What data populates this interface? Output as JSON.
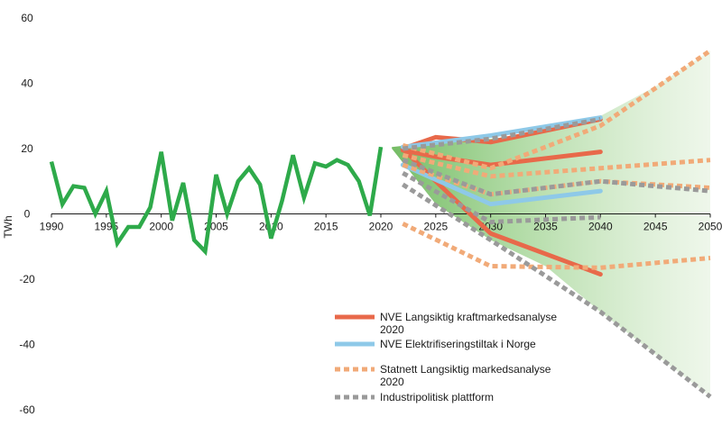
{
  "chart_data": {
    "type": "line",
    "ylabel": "TWh",
    "xlim": [
      1990,
      2050
    ],
    "ylim": [
      -60,
      60
    ],
    "x_ticks": [
      1990,
      1995,
      2000,
      2005,
      2010,
      2015,
      2020,
      2025,
      2030,
      2035,
      2040,
      2045,
      2050
    ],
    "y_ticks": [
      60,
      40,
      20,
      0,
      -20,
      -40,
      -60
    ],
    "grid": false,
    "legend_position": "bottom-right",
    "colors": {
      "historical": "#2eaa4a",
      "nve_market": "#e8694a",
      "nve_electrification": "#8ec9e8",
      "statnett": "#f1aa78",
      "industry": "#9a9a9a",
      "band": "#6ab957"
    },
    "historical": {
      "x": [
        1990,
        1991,
        1992,
        1993,
        1994,
        1995,
        1996,
        1997,
        1998,
        1999,
        2000,
        2001,
        2002,
        2003,
        2004,
        2005,
        2006,
        2007,
        2008,
        2009,
        2010,
        2011,
        2012,
        2013,
        2014,
        2015,
        2016,
        2017,
        2018,
        2019,
        2020
      ],
      "y": [
        16,
        3,
        8.5,
        8,
        0,
        7,
        -9,
        -4,
        -4,
        2,
        19,
        -2,
        9.5,
        -8,
        -11.5,
        12,
        0,
        10,
        14,
        9,
        -7.5,
        4,
        18,
        5,
        15.5,
        14.5,
        16.5,
        15,
        10,
        -0.5,
        20.5
      ]
    },
    "series": [
      {
        "name": "NVE Langsiktig kraftmarkedsanalyse 2020",
        "color": "#e8694a",
        "dash": false,
        "lines": [
          {
            "x": [
              2022,
              2025,
              2030,
              2040
            ],
            "y": [
              20,
              23.5,
              22,
              29
            ]
          },
          {
            "x": [
              2022,
              2025,
              2030,
              2040
            ],
            "y": [
              19.5,
              17.5,
              15,
              19
            ]
          },
          {
            "x": [
              2022,
              2025,
              2030,
              2040
            ],
            "y": [
              20,
              10,
              -6,
              -18.5
            ]
          }
        ]
      },
      {
        "name": "NVE Elektrifiseringstiltak i Norge",
        "color": "#8ec9e8",
        "dash": false,
        "lines": [
          {
            "x": [
              2022,
              2030,
              2040
            ],
            "y": [
              20.5,
              24,
              29.5
            ]
          },
          {
            "x": [
              2022,
              2030,
              2040
            ],
            "y": [
              15,
              3,
              7
            ]
          }
        ]
      },
      {
        "name": "Statnett Langsiktig markedsanalyse 2020",
        "color": "#f1aa78",
        "dash": true,
        "lines": [
          {
            "x": [
              2022,
              2030,
              2040,
              2050
            ],
            "y": [
              21,
              14,
              27,
              50
            ]
          },
          {
            "x": [
              2022,
              2030,
              2040,
              2050
            ],
            "y": [
              18,
              11.5,
              14,
              16.5
            ]
          },
          {
            "x": [
              2022,
              2030,
              2040,
              2050
            ],
            "y": [
              15,
              6,
              10,
              8
            ]
          },
          {
            "x": [
              2022,
              2030,
              2040,
              2050
            ],
            "y": [
              -3,
              -16,
              -16.5,
              -13.5
            ]
          }
        ]
      },
      {
        "name": "Industripolitisk plattform",
        "color": "#9a9a9a",
        "dash": true,
        "lines": [
          {
            "x": [
              2022,
              2030,
              2040
            ],
            "y": [
              20,
              23,
              29
            ]
          },
          {
            "x": [
              2022,
              2030,
              2040,
              2050
            ],
            "y": [
              16.5,
              6,
              10,
              7
            ]
          },
          {
            "x": [
              2022,
              2030,
              2040
            ],
            "y": [
              12.5,
              -2.5,
              -1
            ]
          },
          {
            "x": [
              2022,
              2030,
              2040,
              2050
            ],
            "y": [
              9,
              -8,
              -30,
              -56
            ]
          }
        ]
      }
    ],
    "band": {
      "x": [
        2021,
        2025,
        2030,
        2035,
        2040,
        2045,
        2050
      ],
      "upper": [
        20.5,
        22,
        23,
        25,
        30,
        39,
        50
      ],
      "lower": [
        20,
        3,
        -8,
        -16,
        -30,
        -43,
        -56
      ]
    },
    "legend": [
      {
        "label_1": "NVE Langsiktig kraftmarkedsanalyse",
        "label_2": "2020",
        "style": "solid",
        "color": "#e8694a"
      },
      {
        "label_1": "NVE Elektrifiseringstiltak i Norge",
        "label_2": "",
        "style": "solid",
        "color": "#8ec9e8"
      },
      {
        "label_1": "Statnett Langsiktig markedsanalyse",
        "label_2": "2020",
        "style": "dotted",
        "color": "#f1aa78"
      },
      {
        "label_1": "Industripolitisk plattform",
        "label_2": "",
        "style": "dotted",
        "color": "#9a9a9a"
      }
    ]
  }
}
